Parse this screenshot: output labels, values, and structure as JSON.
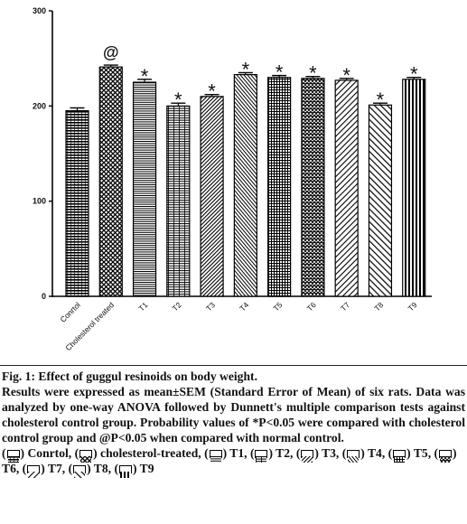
{
  "chart_data": {
    "type": "bar",
    "categories": [
      "Conrtol",
      "Cholesterol treated",
      "T1",
      "T2",
      "T3",
      "T4",
      "T5",
      "T6",
      "T7",
      "T8",
      "T9"
    ],
    "values": [
      195,
      241,
      225,
      200,
      210,
      233,
      230,
      229,
      227,
      201,
      228
    ],
    "errors": [
      3,
      2,
      3,
      3,
      2,
      2,
      2,
      2,
      2,
      2,
      2
    ],
    "annotations": [
      "",
      "@",
      "*",
      "*",
      "*",
      "*",
      "*",
      "*",
      "*",
      "*",
      "*"
    ],
    "ylim": [
      0,
      300
    ],
    "yticks": [
      0,
      100,
      200,
      300
    ],
    "title": "",
    "xlabel": "",
    "ylabel": "",
    "grid": false
  },
  "caption": {
    "title": "Fig. 1: Effect of guggul resinoids on body weight.",
    "body": "Results were expressed as mean±SEM (Standard Error of Mean) of six rats. Data was analyzed by one-way ANOVA followed by Dunnett's multiple comparison tests against cholesterol control group. Probability values of *P<0.05 were compared with cholesterol control group and @P<0.05 when compared with normal control.",
    "legend": [
      {
        "label": "Conrtol,"
      },
      {
        "label": "cholesterol-treated,"
      },
      {
        "label": "T1,"
      },
      {
        "label": "T2,"
      },
      {
        "label": "T3,"
      },
      {
        "label": "T4,"
      },
      {
        "label": "T5,"
      },
      {
        "label": "T6,"
      },
      {
        "label": "T7,"
      },
      {
        "label": "T8,"
      },
      {
        "label": "T9"
      }
    ]
  }
}
